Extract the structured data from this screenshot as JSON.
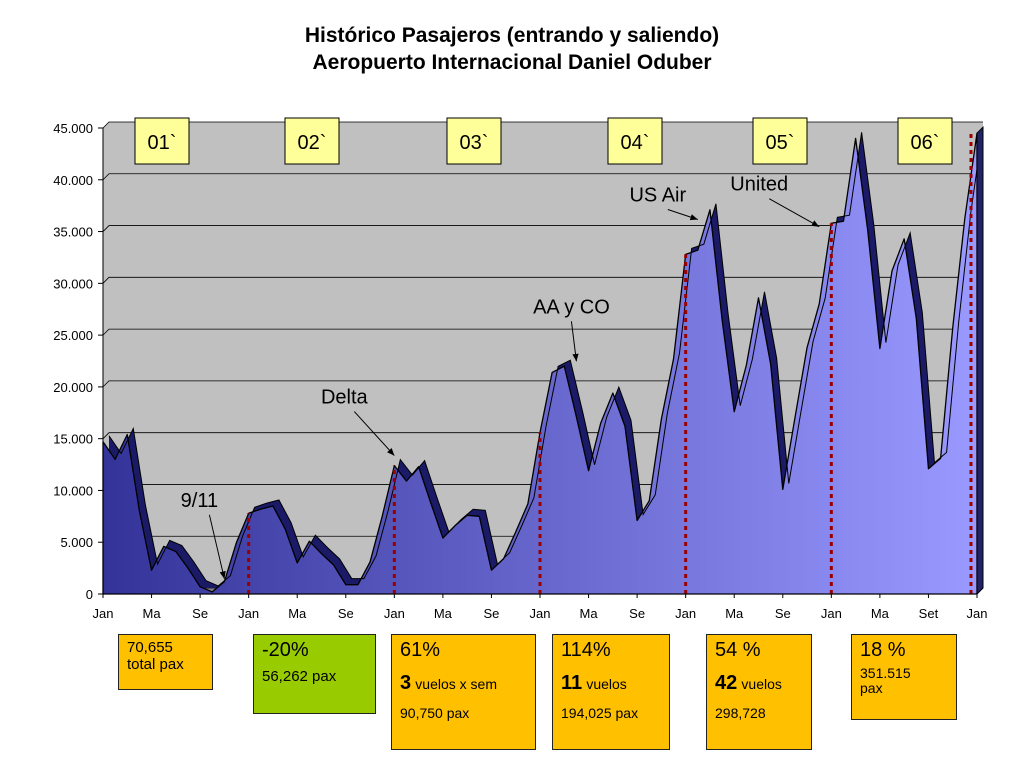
{
  "title": {
    "line1": "Histórico Pasajeros (entrando y saliendo)",
    "line2": "Aeropuerto Internacional Daniel Oduber"
  },
  "chart_data": {
    "type": "area",
    "title": "Histórico Pasajeros (entrando y saliendo) Aeropuerto Internacional Daniel Oduber",
    "ylim": [
      0,
      45000
    ],
    "yticks": [
      "45.000",
      "40.000",
      "35.000",
      "30.000",
      "25.000",
      "20.000",
      "15.000",
      "10.000",
      "5.000",
      "0"
    ],
    "xtick_labels": [
      "Jan",
      "Ma",
      "Se",
      "Jan",
      "Ma",
      "Se",
      "Jan",
      "Ma",
      "Se",
      "Jan",
      "Ma",
      "Se",
      "Jan",
      "Ma",
      "Se",
      "Jan",
      "Ma",
      "Set",
      "Jan"
    ],
    "grid": true,
    "values": [
      14700,
      13000,
      15400,
      8000,
      2300,
      4600,
      4100,
      2500,
      700,
      200,
      1200,
      5000,
      7800,
      8200,
      8500,
      6300,
      3000,
      5100,
      3900,
      2800,
      900,
      900,
      3100,
      7500,
      12400,
      10900,
      12300,
      8800,
      5400,
      6600,
      7600,
      7500,
      2300,
      3400,
      6000,
      8700,
      15600,
      21400,
      22000,
      17100,
      11900,
      16500,
      19400,
      16200,
      7100,
      9000,
      16900,
      22700,
      32800,
      33200,
      37100,
      26500,
      17600,
      22100,
      28600,
      22200,
      10100,
      17000,
      23800,
      28000,
      35800,
      36000,
      44000,
      35100,
      23700,
      31200,
      34300,
      26600,
      12100,
      13100,
      25700,
      36300,
      44500
    ],
    "annotations": [
      {
        "text": "9/11",
        "month_index": 10,
        "value": 500
      },
      {
        "text": "Delta",
        "month_index": 24,
        "value": 12400
      },
      {
        "text": "AA y CO",
        "month_index": 39,
        "value": 21500
      },
      {
        "text": "US Air",
        "month_index": 49,
        "value": 35200
      },
      {
        "text": "United",
        "month_index": 59,
        "value": 34500
      }
    ],
    "year_labels": [
      "01`",
      "02`",
      "03`",
      "04`",
      "05`",
      "06`"
    ],
    "year_start_markers": [
      {
        "month_index": 12,
        "value": 7800
      },
      {
        "month_index": 24,
        "value": 12400
      },
      {
        "month_index": 36,
        "value": 15600
      },
      {
        "month_index": 48,
        "value": 32800
      },
      {
        "month_index": 60,
        "value": 35800
      },
      {
        "month_index": 72,
        "value": 44500
      }
    ]
  },
  "summary_boxes": [
    {
      "line1": "70,655",
      "line2": "total pax",
      "color": "#FFC000"
    },
    {
      "pct": "-20%",
      "pax": "56,262 pax",
      "color": "#99CC00"
    },
    {
      "pct": "61%",
      "num": "3",
      "unit": "vuelos x sem",
      "pax": "90,750 pax",
      "color": "#FFC000"
    },
    {
      "pct": "114%",
      "num": "11",
      "unit": "vuelos",
      "pax": "194,025 pax",
      "color": "#FFC000"
    },
    {
      "pct": "54 %",
      "num": "42",
      "unit": "vuelos",
      "pax": "298,728",
      "color": "#FFC000"
    },
    {
      "pct": "18 %",
      "pax": "351.515 pax",
      "color": "#FFC000"
    }
  ],
  "colors": {
    "plot_bg": "#C0C0C0",
    "area_dark": "#333399",
    "area_light": "#9999FF",
    "marker": "#990000",
    "year_box": "#FFFF99"
  }
}
